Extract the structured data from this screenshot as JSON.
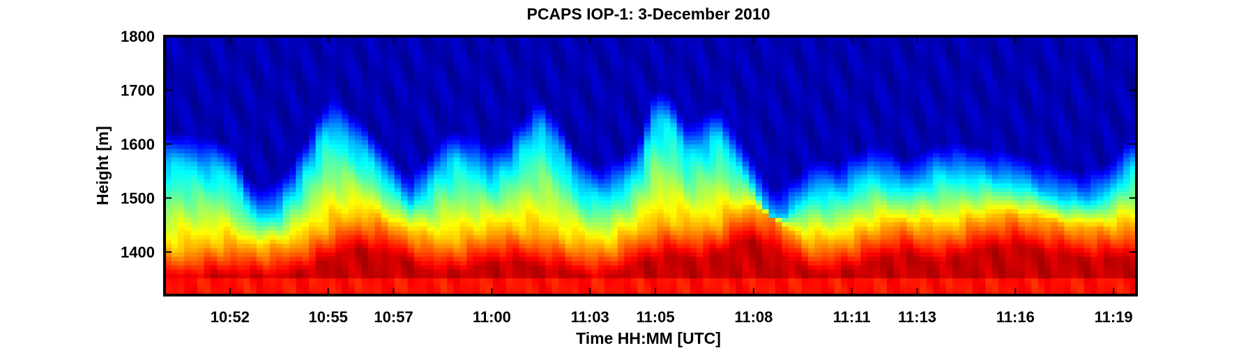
{
  "chart_data": {
    "type": "heatmap",
    "title": "PCAPS IOP-1: 3-December 2010",
    "xlabel": "Time HH:MM [UTC]",
    "ylabel": "Height [m]",
    "x_tick_labels": [
      "10:52",
      "10:55",
      "10:57",
      "11:00",
      "11:03",
      "11:05",
      "11:08",
      "11:11",
      "11:13",
      "11:16",
      "11:19"
    ],
    "x_ticks": [
      {
        "label": "10:52",
        "minutes": 652
      },
      {
        "label": "10:55",
        "minutes": 655
      },
      {
        "label": "10:57",
        "minutes": 657
      },
      {
        "label": "11:00",
        "minutes": 660
      },
      {
        "label": "11:03",
        "minutes": 663
      },
      {
        "label": "11:05",
        "minutes": 665
      },
      {
        "label": "11:08",
        "minutes": 668
      },
      {
        "label": "11:11",
        "minutes": 671
      },
      {
        "label": "11:13",
        "minutes": 673
      },
      {
        "label": "11:16",
        "minutes": 676
      },
      {
        "label": "11:19",
        "minutes": 679
      }
    ],
    "xlim_minutes": [
      650.0,
      679.7
    ],
    "y_ticks": [
      1400,
      1500,
      1600,
      1700,
      1800
    ],
    "ylim": [
      1320,
      1800
    ],
    "colormap": "jet",
    "colorbar": false,
    "grid": false,
    "surface_layer_top_m": 1355,
    "layer_profile": {
      "time_minutes": [
        650.0,
        650.5,
        651.0,
        651.5,
        652.0,
        652.5,
        653.0,
        653.5,
        654.0,
        654.5,
        655.0,
        655.5,
        656.0,
        656.5,
        657.0,
        657.5,
        658.0,
        658.5,
        659.0,
        659.5,
        660.0,
        660.5,
        661.0,
        661.5,
        662.0,
        662.5,
        663.0,
        663.5,
        664.0,
        664.5,
        665.0,
        665.5,
        666.0,
        666.5,
        667.0,
        667.5,
        668.0,
        668.5,
        669.0,
        669.5,
        670.0,
        670.5,
        671.0,
        671.5,
        672.0,
        672.5,
        673.0,
        673.5,
        674.0,
        674.5,
        675.0,
        675.5,
        676.0,
        676.5,
        677.0,
        677.5,
        678.0,
        678.5,
        679.0,
        679.5
      ],
      "inversion_height_m": [
        1400,
        1403,
        1408,
        1413,
        1415,
        1412,
        1410,
        1412,
        1418,
        1430,
        1445,
        1458,
        1465,
        1460,
        1450,
        1440,
        1425,
        1418,
        1422,
        1430,
        1438,
        1440,
        1438,
        1432,
        1425,
        1418,
        1412,
        1408,
        1425,
        1438,
        1448,
        1452,
        1448,
        1445,
        1455,
        1475,
        1482,
        1470,
        1445,
        1425,
        1418,
        1420,
        1428,
        1438,
        1448,
        1455,
        1450,
        1442,
        1442,
        1455,
        1462,
        1468,
        1470,
        1465,
        1458,
        1452,
        1448,
        1445,
        1447,
        1450
      ],
      "mixed_layer_top_m": [
        1560,
        1572,
        1560,
        1555,
        1550,
        1490,
        1465,
        1480,
        1520,
        1575,
        1635,
        1615,
        1590,
        1560,
        1520,
        1490,
        1520,
        1560,
        1575,
        1560,
        1540,
        1560,
        1600,
        1630,
        1590,
        1540,
        1510,
        1510,
        1525,
        1555,
        1650,
        1640,
        1585,
        1600,
        1620,
        1565,
        1525,
        1465,
        1470,
        1500,
        1520,
        1510,
        1525,
        1545,
        1540,
        1520,
        1525,
        1545,
        1550,
        1545,
        1540,
        1535,
        1530,
        1520,
        1510,
        1500,
        1495,
        1500,
        1520,
        1560
      ]
    }
  }
}
